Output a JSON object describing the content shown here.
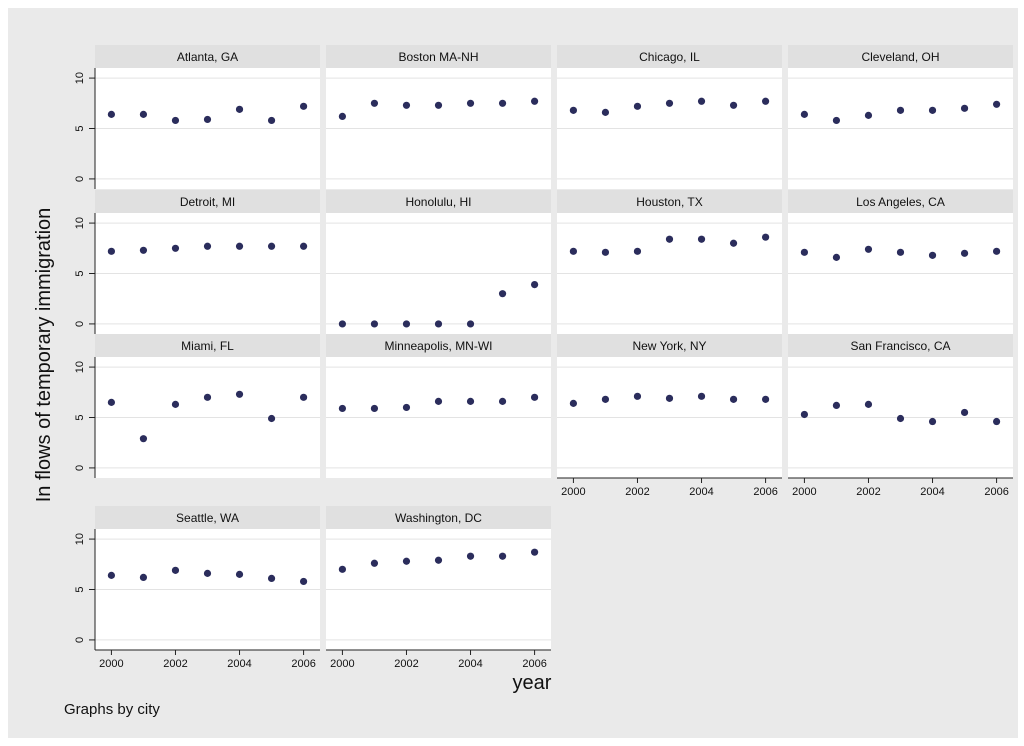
{
  "chart_data": {
    "type": "scatter",
    "layout": "small-multiples",
    "ylabel": "In flows of temporary immigration",
    "xlabel": "year",
    "note": "Graphs by city",
    "x": [
      2000,
      2001,
      2002,
      2003,
      2004,
      2005,
      2006
    ],
    "x_ticks": [
      2000,
      2002,
      2004,
      2006
    ],
    "x_tick_labels": [
      "2000",
      "2002",
      "2004",
      "2006"
    ],
    "y_ticks": [
      0,
      5,
      10
    ],
    "y_tick_labels": [
      "0",
      "5",
      "10"
    ],
    "ylim": [
      -1,
      11
    ],
    "xlim": [
      1999.8,
      2006.2
    ],
    "grid": true,
    "marker_color": "#2b2d5c",
    "background_color": "#eaeaea",
    "strip_color": "#e0e0e0",
    "panels": [
      {
        "title": "Atlanta, GA",
        "values": [
          6.4,
          6.4,
          5.8,
          5.9,
          6.9,
          5.8,
          7.2
        ]
      },
      {
        "title": "Boston MA-NH",
        "values": [
          6.2,
          7.5,
          7.3,
          7.3,
          7.5,
          7.5,
          7.7
        ]
      },
      {
        "title": "Chicago, IL",
        "values": [
          6.8,
          6.6,
          7.2,
          7.5,
          7.7,
          7.3,
          7.7
        ]
      },
      {
        "title": "Cleveland, OH",
        "values": [
          6.4,
          5.8,
          6.3,
          6.8,
          6.8,
          7.0,
          7.4
        ]
      },
      {
        "title": "Detroit, MI",
        "values": [
          7.2,
          7.3,
          7.5,
          7.7,
          7.7,
          7.7,
          7.7
        ]
      },
      {
        "title": "Honolulu, HI",
        "values": [
          0.0,
          0.0,
          0.0,
          0.0,
          0.0,
          3.0,
          3.9
        ]
      },
      {
        "title": "Houston, TX",
        "values": [
          7.2,
          7.1,
          7.2,
          8.4,
          8.4,
          8.0,
          8.6
        ]
      },
      {
        "title": "Los Angeles, CA",
        "values": [
          7.1,
          6.6,
          7.4,
          7.1,
          6.8,
          7.0,
          7.2
        ]
      },
      {
        "title": "Miami, FL",
        "values": [
          6.5,
          2.9,
          6.3,
          7.0,
          7.3,
          4.9,
          7.0
        ]
      },
      {
        "title": "Minneapolis, MN-WI",
        "values": [
          5.9,
          5.9,
          6.0,
          6.6,
          6.6,
          6.6,
          7.0
        ]
      },
      {
        "title": "New York, NY",
        "values": [
          6.4,
          6.8,
          7.1,
          6.9,
          7.1,
          6.8,
          6.8
        ]
      },
      {
        "title": "San Francisco, CA",
        "values": [
          5.3,
          6.2,
          6.3,
          4.9,
          4.6,
          5.5,
          4.6
        ]
      },
      {
        "title": "Seattle, WA",
        "values": [
          6.4,
          6.2,
          6.9,
          6.6,
          6.5,
          6.1,
          5.8
        ]
      },
      {
        "title": "Washington, DC",
        "values": [
          7.0,
          7.6,
          7.8,
          7.9,
          8.3,
          8.3,
          8.7
        ]
      }
    ]
  }
}
